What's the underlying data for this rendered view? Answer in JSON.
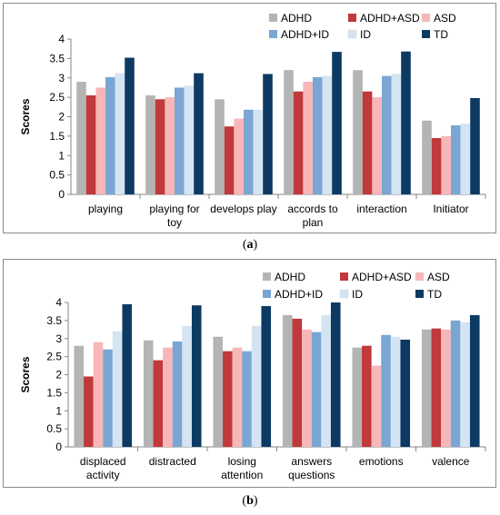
{
  "colors": {
    "ADHD": "#b4b4b4",
    "ADHD+ASD": "#c0393b",
    "ASD": "#f7b7b8",
    "ADHD+ID": "#7aa6d4",
    "ID": "#d4e4f2",
    "TD": "#0d3a63"
  },
  "chart_data": [
    {
      "panel": "a",
      "caption_open": "(",
      "caption_letter": "a",
      "caption_close": ")",
      "type": "bar",
      "ylabel": "Scores",
      "ylim": [
        0,
        4
      ],
      "yticks": [
        "0",
        "0.5",
        "1",
        "1.5",
        "2",
        "2.5",
        "3",
        "3.5",
        "4"
      ],
      "legend_position": "top-right",
      "categories": [
        [
          "playing"
        ],
        [
          "playing  for",
          "toy"
        ],
        [
          "develops play"
        ],
        [
          "accords to",
          "plan"
        ],
        [
          "interaction"
        ],
        [
          "Initiator"
        ]
      ],
      "series": [
        {
          "name": "ADHD",
          "values": [
            2.9,
            2.55,
            2.45,
            3.2,
            3.2,
            1.9
          ]
        },
        {
          "name": "ADHD+ASD",
          "values": [
            2.55,
            2.45,
            1.75,
            2.65,
            2.65,
            1.45
          ]
        },
        {
          "name": "ASD",
          "values": [
            2.75,
            2.5,
            1.95,
            2.9,
            2.5,
            1.5
          ]
        },
        {
          "name": "ADHD+ID",
          "values": [
            3.02,
            2.75,
            2.18,
            3.02,
            3.05,
            1.78
          ]
        },
        {
          "name": "ID",
          "values": [
            3.12,
            2.8,
            2.18,
            3.05,
            3.1,
            1.82
          ]
        },
        {
          "name": "TD",
          "values": [
            3.52,
            3.12,
            3.1,
            3.67,
            3.68,
            2.48
          ]
        }
      ]
    },
    {
      "panel": "b",
      "caption_open": "(",
      "caption_letter": "b",
      "caption_close": ")",
      "type": "bar",
      "ylabel": "Scores",
      "ylim": [
        0,
        4
      ],
      "yticks": [
        "0",
        "0.5",
        "1",
        "1.5",
        "2",
        "2.5",
        "3",
        "3.5",
        "4"
      ],
      "legend_position": "top-right",
      "categories": [
        [
          "displaced",
          "activity"
        ],
        [
          "distracted"
        ],
        [
          "losing",
          "attention"
        ],
        [
          "answers",
          "questions"
        ],
        [
          "emotions"
        ],
        [
          "valence"
        ]
      ],
      "series": [
        {
          "name": "ADHD",
          "values": [
            2.8,
            2.95,
            3.05,
            3.65,
            2.75,
            3.25
          ]
        },
        {
          "name": "ADHD+ASD",
          "values": [
            1.95,
            2.4,
            2.65,
            3.55,
            2.8,
            3.28
          ]
        },
        {
          "name": "ASD",
          "values": [
            2.9,
            2.75,
            2.75,
            3.25,
            2.25,
            3.25
          ]
        },
        {
          "name": "ADHD+ID",
          "values": [
            2.7,
            2.92,
            2.65,
            3.18,
            3.1,
            3.5
          ]
        },
        {
          "name": "ID",
          "values": [
            3.2,
            3.35,
            3.35,
            3.65,
            3.05,
            3.45
          ]
        },
        {
          "name": "TD",
          "values": [
            3.95,
            3.92,
            3.9,
            4.0,
            2.97,
            3.65
          ]
        }
      ]
    }
  ]
}
